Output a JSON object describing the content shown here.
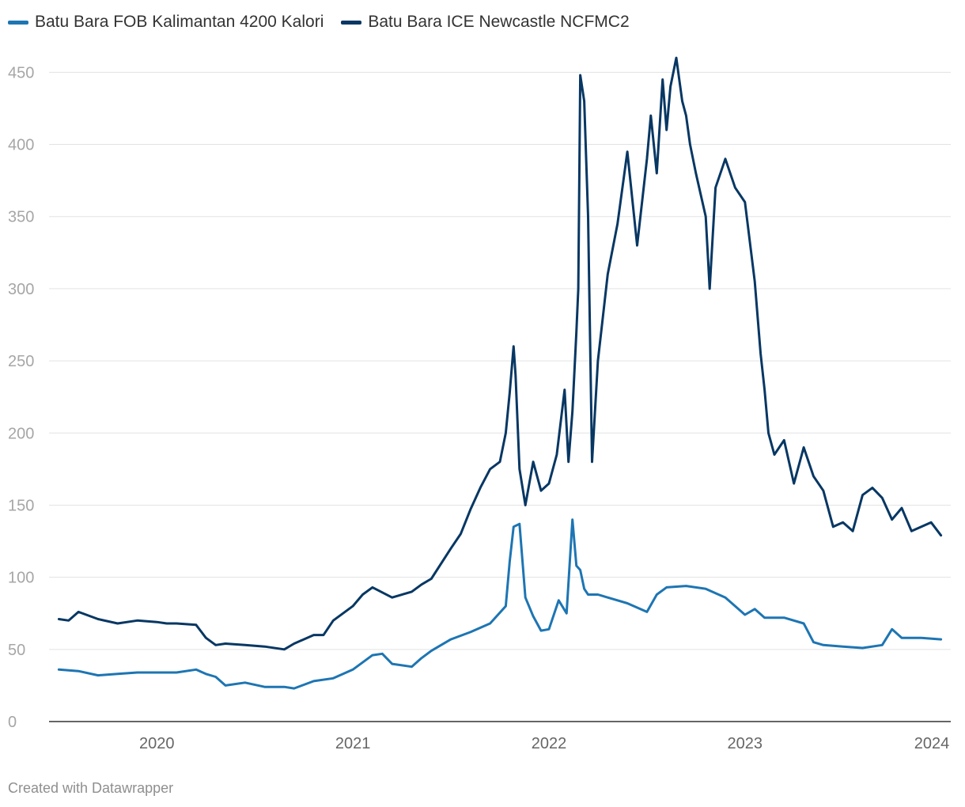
{
  "legend": [
    {
      "label": "Batu Bara FOB Kalimantan 4200 Kalori",
      "color": "#1d75b3"
    },
    {
      "label": "Batu Bara ICE Newcastle NCFMC2",
      "color": "#073763"
    }
  ],
  "footer": "Created with Datawrapper",
  "chart_data": {
    "type": "line",
    "title": "",
    "xlabel": "",
    "ylabel": "",
    "xlim": [
      2019.45,
      2024.05
    ],
    "ylim": [
      0,
      465
    ],
    "y_ticks": [
      0,
      50,
      100,
      150,
      200,
      250,
      300,
      350,
      400,
      450
    ],
    "x_ticks": [
      {
        "value": 2020.0,
        "label": "2020"
      },
      {
        "value": 2021.0,
        "label": "2021"
      },
      {
        "value": 2022.0,
        "label": "2022"
      },
      {
        "value": 2023.0,
        "label": "2023"
      },
      {
        "value": 2024.0,
        "label": "2024"
      }
    ],
    "grid": true,
    "series": [
      {
        "name": "Batu Bara FOB Kalimantan 4200 Kalori",
        "color": "#1d75b3",
        "x": [
          2019.5,
          2019.6,
          2019.7,
          2019.8,
          2019.9,
          2020.0,
          2020.1,
          2020.2,
          2020.25,
          2020.3,
          2020.35,
          2020.45,
          2020.55,
          2020.65,
          2020.7,
          2020.8,
          2020.9,
          2021.0,
          2021.1,
          2021.15,
          2021.2,
          2021.3,
          2021.35,
          2021.4,
          2021.5,
          2021.6,
          2021.7,
          2021.78,
          2021.8,
          2021.82,
          2021.85,
          2021.88,
          2021.92,
          2021.96,
          2022.0,
          2022.05,
          2022.09,
          2022.12,
          2022.14,
          2022.16,
          2022.18,
          2022.2,
          2022.25,
          2022.3,
          2022.4,
          2022.5,
          2022.55,
          2022.6,
          2022.7,
          2022.8,
          2022.9,
          2023.0,
          2023.05,
          2023.1,
          2023.2,
          2023.3,
          2023.35,
          2023.4,
          2023.5,
          2023.6,
          2023.7,
          2023.75,
          2023.8,
          2023.9,
          2024.0
        ],
        "values": [
          36,
          35,
          32,
          33,
          34,
          34,
          34,
          36,
          33,
          31,
          25,
          27,
          24,
          24,
          23,
          28,
          30,
          36,
          46,
          47,
          40,
          38,
          44,
          49,
          57,
          62,
          68,
          80,
          111,
          135,
          137,
          86,
          73,
          63,
          64,
          84,
          75,
          140,
          108,
          105,
          92,
          88,
          88,
          86,
          82,
          76,
          88,
          93,
          94,
          92,
          86,
          74,
          78,
          72,
          72,
          68,
          55,
          53,
          52,
          51,
          53,
          64,
          58,
          58,
          57
        ]
      },
      {
        "name": "Batu Bara ICE Newcastle NCFMC2",
        "color": "#073763",
        "x": [
          2019.5,
          2019.55,
          2019.6,
          2019.7,
          2019.8,
          2019.9,
          2020.0,
          2020.05,
          2020.1,
          2020.2,
          2020.25,
          2020.3,
          2020.35,
          2020.45,
          2020.55,
          2020.65,
          2020.7,
          2020.8,
          2020.85,
          2020.9,
          2021.0,
          2021.05,
          2021.1,
          2021.2,
          2021.3,
          2021.35,
          2021.4,
          2021.5,
          2021.55,
          2021.6,
          2021.65,
          2021.7,
          2021.75,
          2021.78,
          2021.8,
          2021.82,
          2021.83,
          2021.85,
          2021.88,
          2021.92,
          2021.96,
          2022.0,
          2022.04,
          2022.08,
          2022.1,
          2022.12,
          2022.14,
          2022.15,
          2022.16,
          2022.18,
          2022.2,
          2022.22,
          2022.25,
          2022.3,
          2022.35,
          2022.4,
          2022.45,
          2022.5,
          2022.52,
          2022.55,
          2022.58,
          2022.6,
          2022.62,
          2022.65,
          2022.68,
          2022.7,
          2022.72,
          2022.75,
          2022.8,
          2022.82,
          2022.85,
          2022.9,
          2022.95,
          2023.0,
          2023.05,
          2023.08,
          2023.1,
          2023.12,
          2023.15,
          2023.2,
          2023.25,
          2023.3,
          2023.35,
          2023.4,
          2023.45,
          2023.5,
          2023.55,
          2023.6,
          2023.65,
          2023.7,
          2023.75,
          2023.8,
          2023.85,
          2023.9,
          2023.95,
          2024.0
        ],
        "values": [
          71,
          70,
          76,
          71,
          68,
          70,
          69,
          68,
          68,
          67,
          58,
          53,
          54,
          53,
          52,
          50,
          54,
          60,
          60,
          70,
          80,
          88,
          93,
          86,
          90,
          95,
          99,
          120,
          130,
          147,
          162,
          175,
          180,
          200,
          228,
          260,
          240,
          175,
          150,
          180,
          160,
          165,
          185,
          230,
          180,
          215,
          270,
          300,
          448,
          430,
          350,
          180,
          250,
          310,
          345,
          395,
          330,
          390,
          420,
          380,
          445,
          410,
          440,
          460,
          430,
          420,
          400,
          380,
          350,
          300,
          370,
          390,
          370,
          360,
          305,
          255,
          230,
          200,
          185,
          195,
          165,
          190,
          170,
          160,
          135,
          138,
          132,
          157,
          162,
          155,
          140,
          148,
          132,
          135,
          138,
          129
        ]
      }
    ]
  }
}
